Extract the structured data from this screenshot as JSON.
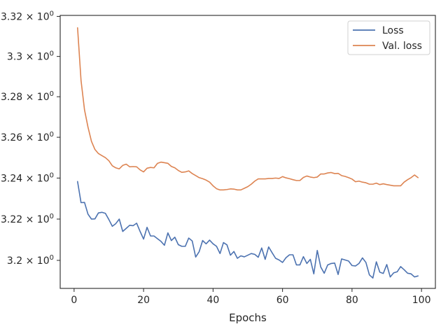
{
  "chart_data": {
    "type": "line",
    "title": "",
    "xlabel": "Epochs",
    "ylabel": "",
    "xlim": [
      -4,
      104
    ],
    "ylim": [
      3.1865,
      3.3205
    ],
    "yscale": "log",
    "grid": false,
    "legend_position": "top-right",
    "x_ticks": [
      0,
      20,
      40,
      60,
      80,
      100
    ],
    "x_tick_labels": [
      "0",
      "20",
      "40",
      "60",
      "80",
      "100"
    ],
    "y_ticks": [
      3.2,
      3.22,
      3.24,
      3.26,
      3.28,
      3.3,
      3.32
    ],
    "y_tick_labels": [
      {
        "mantissa": "3.2",
        "base": "10",
        "exp": "0"
      },
      {
        "mantissa": "3.22",
        "base": "10",
        "exp": "0"
      },
      {
        "mantissa": "3.24",
        "base": "10",
        "exp": "0"
      },
      {
        "mantissa": "3.26",
        "base": "10",
        "exp": "0"
      },
      {
        "mantissa": "3.28",
        "base": "10",
        "exp": "0"
      },
      {
        "mantissa": "3.3",
        "base": "10",
        "exp": "0"
      },
      {
        "mantissa": "3.32",
        "base": "10",
        "exp": "0"
      }
    ],
    "x": [
      1,
      2,
      3,
      4,
      5,
      6,
      7,
      8,
      9,
      10,
      11,
      12,
      13,
      14,
      15,
      16,
      17,
      18,
      19,
      20,
      21,
      22,
      23,
      24,
      25,
      26,
      27,
      28,
      29,
      30,
      31,
      32,
      33,
      34,
      35,
      36,
      37,
      38,
      39,
      40,
      41,
      42,
      43,
      44,
      45,
      46,
      47,
      48,
      49,
      50,
      51,
      52,
      53,
      54,
      55,
      56,
      57,
      58,
      59,
      60,
      61,
      62,
      63,
      64,
      65,
      66,
      67,
      68,
      69,
      70,
      71,
      72,
      73,
      74,
      75,
      76,
      77,
      78,
      79,
      80,
      81,
      82,
      83,
      84,
      85,
      86,
      87,
      88,
      89,
      90,
      91,
      92,
      93,
      94,
      95,
      96,
      97,
      98,
      99
    ],
    "series": [
      {
        "name": "Loss",
        "color": "#4c72b0",
        "values": [
          3.2383,
          3.228,
          3.2281,
          3.2224,
          3.22,
          3.2201,
          3.223,
          3.2233,
          3.2228,
          3.2198,
          3.2165,
          3.2178,
          3.22,
          3.214,
          3.2155,
          3.217,
          3.2168,
          3.218,
          3.214,
          3.2103,
          3.216,
          3.2118,
          3.2118,
          3.2105,
          3.2092,
          3.2073,
          3.2133,
          3.2096,
          3.2112,
          3.2076,
          3.2068,
          3.2068,
          3.2108,
          3.2094,
          3.2016,
          3.2042,
          3.2096,
          3.208,
          3.2098,
          3.208,
          3.2068,
          3.2033,
          3.2086,
          3.2075,
          3.2025,
          3.2043,
          3.201,
          3.2022,
          3.2017,
          3.2025,
          3.2033,
          3.2029,
          3.2015,
          3.206,
          3.2005,
          3.2065,
          3.2037,
          3.201,
          3.2002,
          3.199,
          3.2013,
          3.2027,
          3.2027,
          3.1978,
          3.1978,
          3.2018,
          3.1985,
          3.2005,
          3.1935,
          3.2048,
          3.1968,
          3.1938,
          3.1978,
          3.1985,
          3.1987,
          3.1932,
          3.2007,
          3.2002,
          3.1997,
          3.1975,
          3.1973,
          3.1985,
          3.2012,
          3.199,
          3.193,
          3.1915,
          3.1993,
          3.1943,
          3.1937,
          3.198,
          3.192,
          3.194,
          3.1945,
          3.197,
          3.1955,
          3.1938,
          3.1935,
          3.192,
          3.1925
        ]
      },
      {
        "name": "Val. loss",
        "color": "#dd8452",
        "values": [
          3.3143,
          3.288,
          3.2735,
          3.265,
          3.258,
          3.254,
          3.252,
          3.251,
          3.25,
          3.2485,
          3.246,
          3.245,
          3.2445,
          3.2462,
          3.2468,
          3.2455,
          3.2456,
          3.2455,
          3.244,
          3.243,
          3.2448,
          3.2452,
          3.245,
          3.2472,
          3.2478,
          3.2475,
          3.2472,
          3.2457,
          3.245,
          3.2437,
          3.2428,
          3.243,
          3.2435,
          3.2422,
          3.2412,
          3.2402,
          3.2397,
          3.239,
          3.238,
          3.2362,
          3.2348,
          3.2342,
          3.2342,
          3.2344,
          3.2347,
          3.2346,
          3.2342,
          3.2342,
          3.235,
          3.2358,
          3.237,
          3.2385,
          3.2396,
          3.2396,
          3.2396,
          3.2398,
          3.2398,
          3.24,
          3.2398,
          3.2407,
          3.2401,
          3.2397,
          3.2392,
          3.2388,
          3.2388,
          3.2403,
          3.241,
          3.2405,
          3.2402,
          3.2405,
          3.242,
          3.242,
          3.2425,
          3.2427,
          3.2422,
          3.2423,
          3.2412,
          3.2408,
          3.2402,
          3.2395,
          3.2382,
          3.2385,
          3.238,
          3.2377,
          3.237,
          3.237,
          3.2375,
          3.2368,
          3.2372,
          3.2368,
          3.2365,
          3.2362,
          3.2362,
          3.2362,
          3.238,
          3.2392,
          3.2402,
          3.2415,
          3.2402
        ]
      }
    ]
  }
}
